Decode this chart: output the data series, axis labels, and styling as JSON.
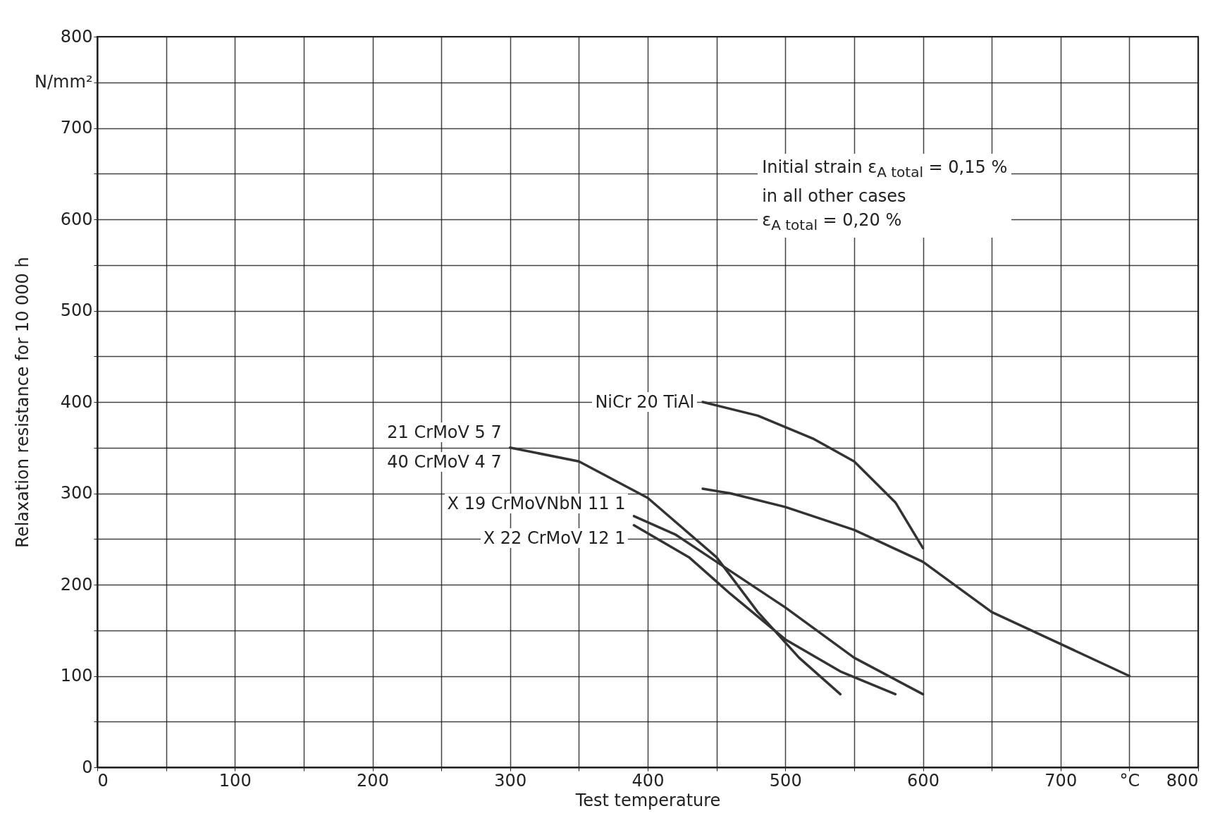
{
  "chart_data": {
    "type": "line",
    "xlabel": "Test temperature",
    "ylabel": "Relaxation resistance for 10 000 h",
    "xlim": [
      0,
      800
    ],
    "ylim": [
      0,
      800
    ],
    "xticks": [
      0,
      {
        "value": 50,
        "label": null
      },
      100,
      {
        "value": 150,
        "label": null
      },
      200,
      {
        "value": 250,
        "label": null
      },
      300,
      {
        "value": 350,
        "label": null
      },
      400,
      {
        "value": 450,
        "label": null
      },
      500,
      {
        "value": 550,
        "label": null
      },
      600,
      {
        "value": 650,
        "label": null
      },
      700,
      {
        "value": 750,
        "label": "°C"
      },
      800
    ],
    "yticks": [
      0,
      {
        "value": 50,
        "label": null
      },
      100,
      {
        "value": 150,
        "label": null
      },
      200,
      {
        "value": 250,
        "label": null
      },
      300,
      {
        "value": 350,
        "label": null
      },
      400,
      {
        "value": 450,
        "label": null
      },
      500,
      {
        "value": 550,
        "label": null
      },
      600,
      {
        "value": 650,
        "label": null
      },
      700,
      {
        "value": 750,
        "label": "N/mm²"
      },
      800
    ],
    "grid": true,
    "line_style": "solid",
    "series": [
      {
        "name": "21 CrMoV 5 7",
        "color": "#333333",
        "x": [
          300,
          350,
          400,
          450,
          480,
          510,
          540
        ],
        "values": [
          350,
          335,
          295,
          230,
          170,
          120,
          80
        ]
      },
      {
        "name": "X 19 CrMoVNbN 11 1",
        "color": "#333333",
        "x": [
          390,
          420,
          450,
          500,
          550,
          600
        ],
        "values": [
          275,
          255,
          225,
          175,
          120,
          80
        ]
      },
      {
        "name": "X 22 CrMoV 12 1",
        "color": "#333333",
        "x": [
          390,
          430,
          460,
          500,
          540,
          580
        ],
        "values": [
          265,
          230,
          190,
          140,
          105,
          80
        ]
      },
      {
        "name": "NiCr 20 TiAl",
        "color": "#333333",
        "x": [
          440,
          480,
          520,
          550,
          580,
          600
        ],
        "values": [
          400,
          385,
          360,
          335,
          290,
          240
        ]
      },
      {
        "color": "#333333",
        "x": [
          440,
          460,
          500,
          550,
          600,
          650,
          700,
          750
        ],
        "values": [
          305,
          300,
          285,
          260,
          225,
          170,
          135,
          100
        ]
      }
    ],
    "annotations": [
      {
        "text": "40 CrMoV 4 7",
        "x": 300,
        "y": 350
      },
      "Initial strain ε$_{A total}$ = 0,15 %",
      "in all other cases",
      "ε$_{A total}$ = 0,20 %"
    ]
  }
}
